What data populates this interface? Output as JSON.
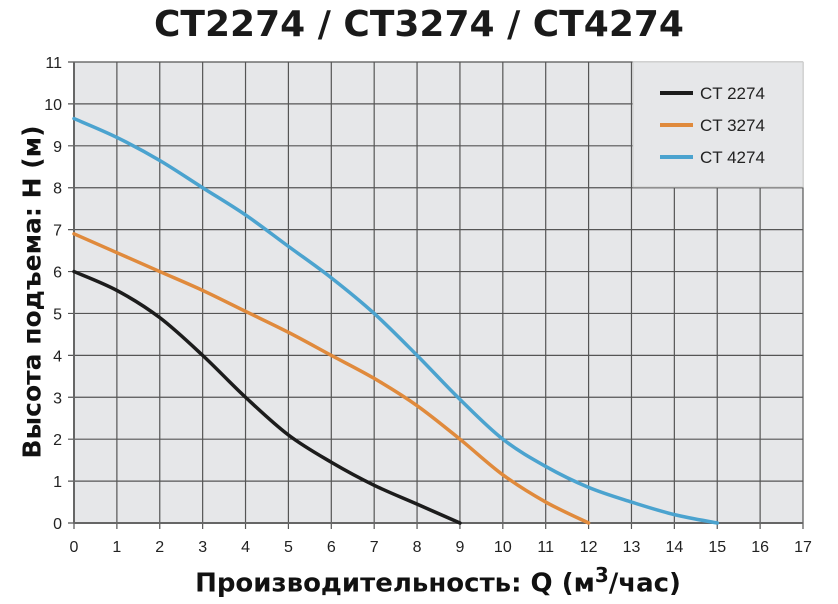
{
  "chart_data": {
    "type": "line",
    "title": "CT2274 / CT3274 / CT4274",
    "xlabel": "Производительность: Q (м³/час)",
    "xlabel_main": "Производительность: Q (м",
    "xlabel_sup": "3",
    "xlabel_tail": "/час)",
    "ylabel": "Высота подъема: H (м)",
    "xlim": [
      0,
      17
    ],
    "ylim": [
      0,
      11
    ],
    "xticks": [
      0,
      1,
      2,
      3,
      4,
      5,
      6,
      7,
      8,
      9,
      10,
      11,
      12,
      13,
      14,
      15,
      16,
      17
    ],
    "yticks": [
      0,
      1,
      2,
      3,
      4,
      5,
      6,
      7,
      8,
      9,
      10,
      11
    ],
    "grid": true,
    "legend_placement": "top-right",
    "background_color": "#e6e7e9",
    "series": [
      {
        "name": "CT 2274",
        "color": "#1c1c1c",
        "x": [
          0,
          1,
          2,
          3,
          4,
          5,
          6,
          7,
          8,
          9
        ],
        "y": [
          6.0,
          5.55,
          4.9,
          4.0,
          3.0,
          2.1,
          1.45,
          0.9,
          0.45,
          0.0
        ]
      },
      {
        "name": "CT 3274",
        "color": "#e08a3c",
        "x": [
          0,
          1,
          2,
          3,
          4,
          5,
          6,
          7,
          8,
          9,
          10,
          11,
          12
        ],
        "y": [
          6.9,
          6.45,
          6.0,
          5.55,
          5.05,
          4.55,
          4.0,
          3.45,
          2.8,
          2.0,
          1.15,
          0.5,
          0.0
        ]
      },
      {
        "name": "CT 4274",
        "color": "#4ba3cf",
        "x": [
          0,
          1,
          2,
          3,
          4,
          5,
          6,
          7,
          8,
          9,
          10,
          11,
          12,
          13,
          14,
          15
        ],
        "y": [
          9.65,
          9.2,
          8.65,
          8.0,
          7.35,
          6.6,
          5.85,
          5.0,
          4.0,
          2.95,
          2.0,
          1.35,
          0.85,
          0.5,
          0.2,
          0.0
        ]
      }
    ]
  }
}
